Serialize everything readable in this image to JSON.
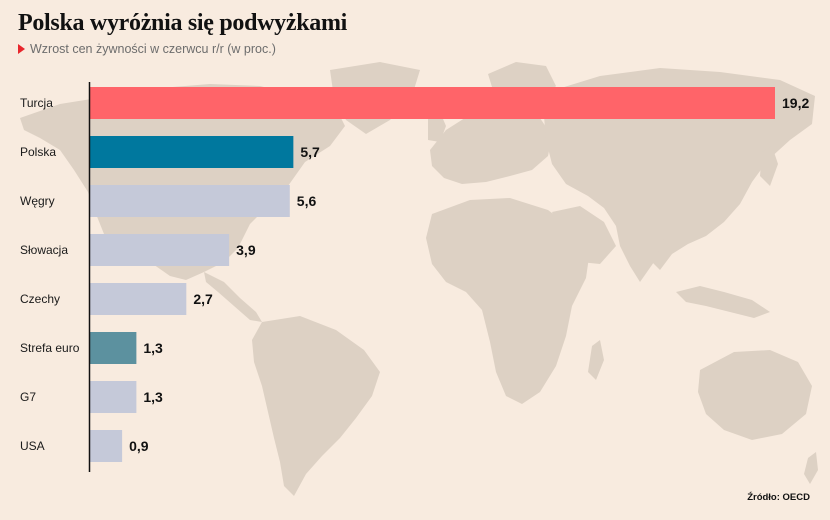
{
  "header": {
    "title": "Polska wyróżnia się podwyżkami",
    "subtitle": "Wzrost cen żywności w czerwcu r/r (w proc.)"
  },
  "footer": {
    "source": "Źródło: OECD"
  },
  "colors": {
    "background": "#f8ebdf",
    "map": "#ddd1c4",
    "highlight": "#ff6469",
    "poland": "#00789e",
    "euro": "#5c919f",
    "default": "#c5c9d9",
    "axis": "#111111"
  },
  "chart_data": {
    "type": "bar",
    "orientation": "horizontal",
    "title": "Polska wyróżnia się podwyżkami",
    "subtitle": "Wzrost cen żywności w czerwcu r/r (w proc.)",
    "categories": [
      "Turcja",
      "Polska",
      "Węgry",
      "Słowacja",
      "Czechy",
      "Strefa euro",
      "G7",
      "USA"
    ],
    "values": [
      19.2,
      5.7,
      5.6,
      3.9,
      2.7,
      1.3,
      1.3,
      0.9
    ],
    "value_labels": [
      "19,2",
      "5,7",
      "5,6",
      "3,9",
      "2,7",
      "1,3",
      "1,3",
      "0,9"
    ],
    "bar_colors": [
      "#ff6469",
      "#00789e",
      "#c5c9d9",
      "#c5c9d9",
      "#c5c9d9",
      "#5c919f",
      "#c5c9d9",
      "#c5c9d9"
    ],
    "xlim": [
      0,
      19.2
    ],
    "grid": false,
    "legend": "none"
  }
}
